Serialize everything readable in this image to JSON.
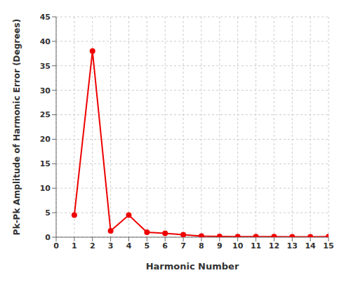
{
  "chart_data": {
    "type": "line",
    "x": [
      1,
      2,
      3,
      4,
      5,
      6,
      7,
      8,
      9,
      10,
      11,
      12,
      13,
      14,
      15
    ],
    "values": [
      4.5,
      38.0,
      1.3,
      4.5,
      1.0,
      0.8,
      0.5,
      0.2,
      0.15,
      0.12,
      0.1,
      0.1,
      0.06,
      0.06,
      0.1
    ],
    "color": "#ee0000",
    "marker": "o",
    "xlabel": "Harmonic Number",
    "ylabel": "Pk-Pk Amplitude of Harmonic Error (Degrees)",
    "xlim": [
      0,
      15
    ],
    "ylim": [
      0,
      45
    ],
    "xticks": [
      0,
      1,
      2,
      3,
      4,
      5,
      6,
      7,
      8,
      9,
      10,
      11,
      12,
      13,
      14,
      15
    ],
    "yticks": [
      0,
      5,
      10,
      15,
      20,
      25,
      30,
      35,
      40,
      45
    ],
    "grid": true
  }
}
